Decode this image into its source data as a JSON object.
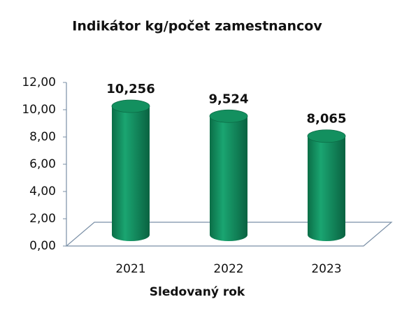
{
  "chart_data": {
    "type": "bar",
    "title": "Indikátor kg/počet zamestnancov",
    "x_label": "Sledovaný rok",
    "categories": [
      "2021",
      "2022",
      "2023"
    ],
    "values": [
      10.256,
      9.524,
      8.065
    ],
    "value_labels": [
      "10,256",
      "9,524",
      "8,065"
    ],
    "color": "#13905f",
    "ylim": [
      0,
      12
    ],
    "yticks": [
      {
        "value": 0,
        "label": "0,00"
      },
      {
        "value": 2,
        "label": "2,00"
      },
      {
        "value": 4,
        "label": "4,00"
      },
      {
        "value": 6,
        "label": "6,00"
      },
      {
        "value": 8,
        "label": "8,00"
      },
      {
        "value": 10,
        "label": "10,00"
      },
      {
        "value": 12,
        "label": "12,00"
      }
    ]
  }
}
